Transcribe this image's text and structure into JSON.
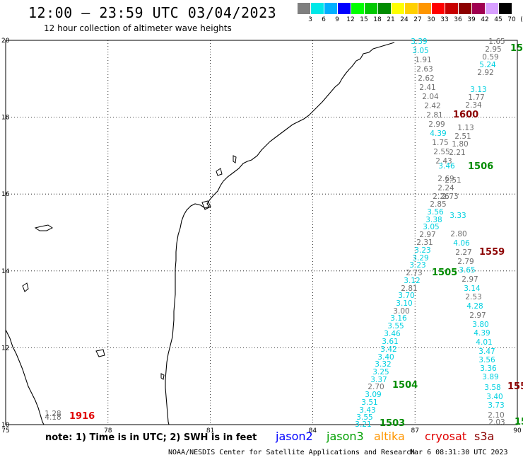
{
  "header": {
    "title": "12:00 — 23:59 UTC 03/04/2023",
    "subtitle": "12 hour collection of altimeter wave heights"
  },
  "scale": {
    "labels": [
      "3",
      "6",
      "9",
      "12",
      "15",
      "18",
      "21",
      "24",
      "27",
      "30",
      "33",
      "36",
      "39",
      "42",
      "45",
      "70",
      "(ft)"
    ],
    "colors": [
      "#7f7f7f",
      "#00e8e8",
      "#00b0ff",
      "#0000ff",
      "#00ff00",
      "#00c800",
      "#008c00",
      "#ffff00",
      "#ffd000",
      "#ff9600",
      "#ff0000",
      "#c80000",
      "#8c0000",
      "#a00050",
      "#d8a0ff",
      "#000000"
    ]
  },
  "axes": {
    "lon_labels": [
      "75",
      "78",
      "81",
      "84",
      "87",
      "90"
    ],
    "lat_labels": [
      "20",
      "18",
      "16",
      "14",
      "12",
      "10"
    ]
  },
  "map_data": {
    "extent": {
      "lon": [
        75,
        90
      ],
      "lat": [
        10,
        20
      ]
    },
    "grid": "dotted",
    "region": "Indian east coast / Bay of Bengal",
    "pass_labels": [
      {
        "text": "1916",
        "color": "#e00000"
      },
      {
        "text": "1600",
        "color": "#8c0000"
      },
      {
        "text": "1506",
        "color": "#008c00"
      },
      {
        "text": "1559",
        "color": "#8c0000"
      },
      {
        "text": "1505",
        "color": "#008c00"
      },
      {
        "text": "1504",
        "color": "#008c00"
      },
      {
        "text": "1503",
        "color": "#008c00"
      },
      {
        "text": "150",
        "color": "#008c00"
      },
      {
        "text": "155",
        "color": "#8c0000"
      },
      {
        "text": "15",
        "color": "#008c00"
      }
    ],
    "track_values": [
      {
        "text": "3.39",
        "color": "#00d0e0"
      },
      {
        "text": "3.05",
        "color": "#00d0e0"
      },
      {
        "text": "1.91",
        "color": "#707070"
      },
      {
        "text": "2.63",
        "color": "#707070"
      },
      {
        "text": "2.62",
        "color": "#707070"
      },
      {
        "text": "2.41",
        "color": "#707070"
      },
      {
        "text": "2.04",
        "color": "#707070"
      },
      {
        "text": "2.42",
        "color": "#707070"
      },
      {
        "text": "2.81",
        "color": "#707070"
      },
      {
        "text": "2.99",
        "color": "#707070"
      },
      {
        "text": "4.39",
        "color": "#00d0e0"
      },
      {
        "text": "1.75",
        "color": "#707070"
      },
      {
        "text": "2.55",
        "color": "#707070"
      },
      {
        "text": "2.43",
        "color": "#707070"
      },
      {
        "text": "3.46",
        "color": "#00d0e0"
      },
      {
        "text": "2.69",
        "color": "#707070"
      },
      {
        "text": "2.24",
        "color": "#707070"
      },
      {
        "text": "2.26",
        "color": "#707070"
      },
      {
        "text": "2.85",
        "color": "#707070"
      },
      {
        "text": "3.56",
        "color": "#00d0e0"
      },
      {
        "text": "3.38",
        "color": "#00d0e0"
      },
      {
        "text": "3.05",
        "color": "#00d0e0"
      },
      {
        "text": "2.97",
        "color": "#707070"
      },
      {
        "text": "2.31",
        "color": "#707070"
      },
      {
        "text": "3.23",
        "color": "#00d0e0"
      },
      {
        "text": "3.29",
        "color": "#00d0e0"
      },
      {
        "text": "3.23",
        "color": "#00d0e0"
      },
      {
        "text": "2.73",
        "color": "#707070"
      },
      {
        "text": "3.12",
        "color": "#00d0e0"
      },
      {
        "text": "2.81",
        "color": "#707070"
      },
      {
        "text": "3.70",
        "color": "#00d0e0"
      },
      {
        "text": "3.10",
        "color": "#00d0e0"
      },
      {
        "text": "3.00",
        "color": "#707070"
      },
      {
        "text": "3.16",
        "color": "#00d0e0"
      },
      {
        "text": "3.55",
        "color": "#00d0e0"
      },
      {
        "text": "3.46",
        "color": "#00d0e0"
      },
      {
        "text": "3.61",
        "color": "#00d0e0"
      },
      {
        "text": "3.42",
        "color": "#00d0e0"
      },
      {
        "text": "3.40",
        "color": "#00d0e0"
      },
      {
        "text": "3.32",
        "color": "#00d0e0"
      },
      {
        "text": "3.25",
        "color": "#00d0e0"
      },
      {
        "text": "3.37",
        "color": "#00d0e0"
      },
      {
        "text": "2.70",
        "color": "#707070"
      },
      {
        "text": "3.09",
        "color": "#00d0e0"
      },
      {
        "text": "3.51",
        "color": "#00d0e0"
      },
      {
        "text": "3.43",
        "color": "#00d0e0"
      },
      {
        "text": "3.55",
        "color": "#00d0e0"
      },
      {
        "text": "3.21",
        "color": "#00d0e0"
      },
      {
        "text": "1.65",
        "color": "#707070"
      },
      {
        "text": "2.95",
        "color": "#707070"
      },
      {
        "text": "0.59",
        "color": "#707070"
      },
      {
        "text": "5.24",
        "color": "#00d0e0"
      },
      {
        "text": "2.92",
        "color": "#707070"
      },
      {
        "text": "3.13",
        "color": "#00d0e0"
      },
      {
        "text": "1.77",
        "color": "#707070"
      },
      {
        "text": "2.34",
        "color": "#707070"
      },
      {
        "text": "1.13",
        "color": "#707070"
      },
      {
        "text": "2.51",
        "color": "#707070"
      },
      {
        "text": "1.80",
        "color": "#707070"
      },
      {
        "text": "2.21",
        "color": "#707070"
      },
      {
        "text": "2.51",
        "color": "#707070"
      },
      {
        "text": "2.73",
        "color": "#707070"
      },
      {
        "text": "3.33",
        "color": "#00d0e0"
      },
      {
        "text": "2.80",
        "color": "#707070"
      },
      {
        "text": "4.06",
        "color": "#00d0e0"
      },
      {
        "text": "2.27",
        "color": "#707070"
      },
      {
        "text": "2.79",
        "color": "#707070"
      },
      {
        "text": "3.65",
        "color": "#00d0e0"
      },
      {
        "text": "2.97",
        "color": "#707070"
      },
      {
        "text": "3.14",
        "color": "#00d0e0"
      },
      {
        "text": "2.53",
        "color": "#707070"
      },
      {
        "text": "4.28",
        "color": "#00d0e0"
      },
      {
        "text": "2.97",
        "color": "#707070"
      },
      {
        "text": "3.80",
        "color": "#00d0e0"
      },
      {
        "text": "4.39",
        "color": "#00d0e0"
      },
      {
        "text": "4.01",
        "color": "#00d0e0"
      },
      {
        "text": "3.47",
        "color": "#00d0e0"
      },
      {
        "text": "3.56",
        "color": "#00d0e0"
      },
      {
        "text": "3.36",
        "color": "#00d0e0"
      },
      {
        "text": "3.89",
        "color": "#00d0e0"
      },
      {
        "text": "3.58",
        "color": "#00d0e0"
      },
      {
        "text": "3.40",
        "color": "#00d0e0"
      },
      {
        "text": "3.73",
        "color": "#00d0e0"
      },
      {
        "text": "2.10",
        "color": "#707070"
      },
      {
        "text": "2.03",
        "color": "#707070"
      },
      {
        "text": "1.28",
        "color": "#707070"
      },
      {
        "text": "4.18",
        "color": "#707070"
      }
    ]
  },
  "footer": {
    "note": "note: 1) Time is in UTC; 2) SWH is in feet",
    "satellites": [
      {
        "name": "jason2",
        "color": "#0000ff"
      },
      {
        "name": "jason3",
        "color": "#00a000"
      },
      {
        "name": "altika",
        "color": "#ff9600"
      },
      {
        "name": "cryosat",
        "color": "#e00000"
      },
      {
        "name": "s3a",
        "color": "#8c0000"
      }
    ],
    "credit": "NOAA/NESDIS Center for Satellite Applications and Research",
    "stamp": "Mar  6 08:31:30 UTC 2023"
  }
}
